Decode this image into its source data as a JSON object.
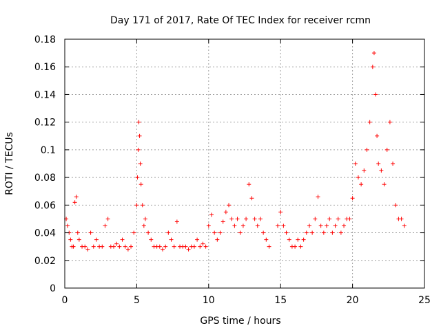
{
  "chart_data": {
    "type": "scatter",
    "title": "Day 171 of 2017, Rate Of TEC Index for receiver rcmn",
    "xlabel": "GPS time / hours",
    "ylabel": "ROTI / TECUs",
    "xlim": [
      0,
      25
    ],
    "ylim": [
      0,
      0.18
    ],
    "x_ticks": [
      0,
      5,
      10,
      15,
      20,
      25
    ],
    "y_ticks": [
      0,
      0.02,
      0.04,
      0.06,
      0.08,
      0.1,
      0.12,
      0.14,
      0.16,
      0.18
    ],
    "x_tick_labels": [
      "0",
      "5",
      "10",
      "15",
      "20",
      "25"
    ],
    "y_tick_labels": [
      "0",
      "0.02",
      "0.04",
      "0.06",
      "0.08",
      "0.1",
      "0.12",
      "0.14",
      "0.16",
      "0.18"
    ],
    "grid": true,
    "legend": "none",
    "marker": "+",
    "color": "#ff0000",
    "series": [
      {
        "x": [
          0.1,
          0.2,
          0.3,
          0.4,
          0.5,
          0.6,
          0.7,
          0.8,
          0.9,
          1.0,
          1.2,
          1.4,
          1.6,
          1.8,
          2.0,
          2.2,
          2.4,
          2.6,
          2.8,
          3.0,
          3.2,
          3.4,
          3.6,
          3.8,
          4.0,
          4.2,
          4.4,
          4.6,
          4.8,
          5.0,
          5.05,
          5.1,
          5.15,
          5.2,
          5.25,
          5.3,
          5.4,
          5.5,
          5.6,
          5.8,
          6.0,
          6.2,
          6.4,
          6.6,
          6.8,
          7.0,
          7.2,
          7.4,
          7.6,
          7.8,
          8.0,
          8.2,
          8.4,
          8.6,
          8.8,
          9.0,
          9.2,
          9.4,
          9.6,
          9.8,
          10.0,
          10.2,
          10.4,
          10.6,
          10.8,
          11.0,
          11.2,
          11.4,
          11.6,
          11.8,
          12.0,
          12.2,
          12.4,
          12.6,
          12.8,
          13.0,
          13.2,
          13.4,
          13.6,
          13.8,
          14.0,
          14.2,
          14.8,
          15.0,
          15.2,
          15.4,
          15.6,
          15.8,
          16.0,
          16.2,
          16.4,
          16.6,
          16.8,
          17.0,
          17.2,
          17.4,
          17.6,
          17.8,
          18.0,
          18.2,
          18.4,
          18.6,
          18.8,
          19.0,
          19.2,
          19.4,
          19.6,
          19.8,
          20.0,
          20.2,
          20.4,
          20.6,
          20.8,
          21.0,
          21.2,
          21.4,
          21.5,
          21.6,
          21.7,
          21.8,
          22.0,
          22.2,
          22.4,
          22.6,
          22.8,
          23.0,
          23.2,
          23.4,
          23.6
        ],
        "y": [
          0.05,
          0.045,
          0.04,
          0.035,
          0.03,
          0.03,
          0.062,
          0.066,
          0.04,
          0.035,
          0.03,
          0.03,
          0.028,
          0.04,
          0.03,
          0.035,
          0.03,
          0.03,
          0.045,
          0.05,
          0.03,
          0.03,
          0.032,
          0.03,
          0.035,
          0.03,
          0.028,
          0.03,
          0.04,
          0.06,
          0.08,
          0.1,
          0.12,
          0.11,
          0.09,
          0.075,
          0.06,
          0.045,
          0.05,
          0.04,
          0.035,
          0.03,
          0.03,
          0.03,
          0.028,
          0.03,
          0.04,
          0.035,
          0.03,
          0.048,
          0.03,
          0.03,
          0.03,
          0.028,
          0.03,
          0.03,
          0.035,
          0.03,
          0.032,
          0.03,
          0.045,
          0.053,
          0.04,
          0.035,
          0.04,
          0.048,
          0.055,
          0.06,
          0.05,
          0.045,
          0.05,
          0.04,
          0.045,
          0.05,
          0.075,
          0.065,
          0.05,
          0.045,
          0.05,
          0.04,
          0.035,
          0.03,
          0.045,
          0.055,
          0.045,
          0.04,
          0.035,
          0.03,
          0.03,
          0.035,
          0.03,
          0.035,
          0.04,
          0.045,
          0.04,
          0.05,
          0.066,
          0.045,
          0.04,
          0.045,
          0.05,
          0.04,
          0.045,
          0.05,
          0.04,
          0.045,
          0.05,
          0.05,
          0.065,
          0.09,
          0.08,
          0.075,
          0.085,
          0.1,
          0.12,
          0.16,
          0.17,
          0.14,
          0.11,
          0.09,
          0.085,
          0.075,
          0.1,
          0.12,
          0.09,
          0.06,
          0.05,
          0.05,
          0.045
        ]
      }
    ]
  }
}
